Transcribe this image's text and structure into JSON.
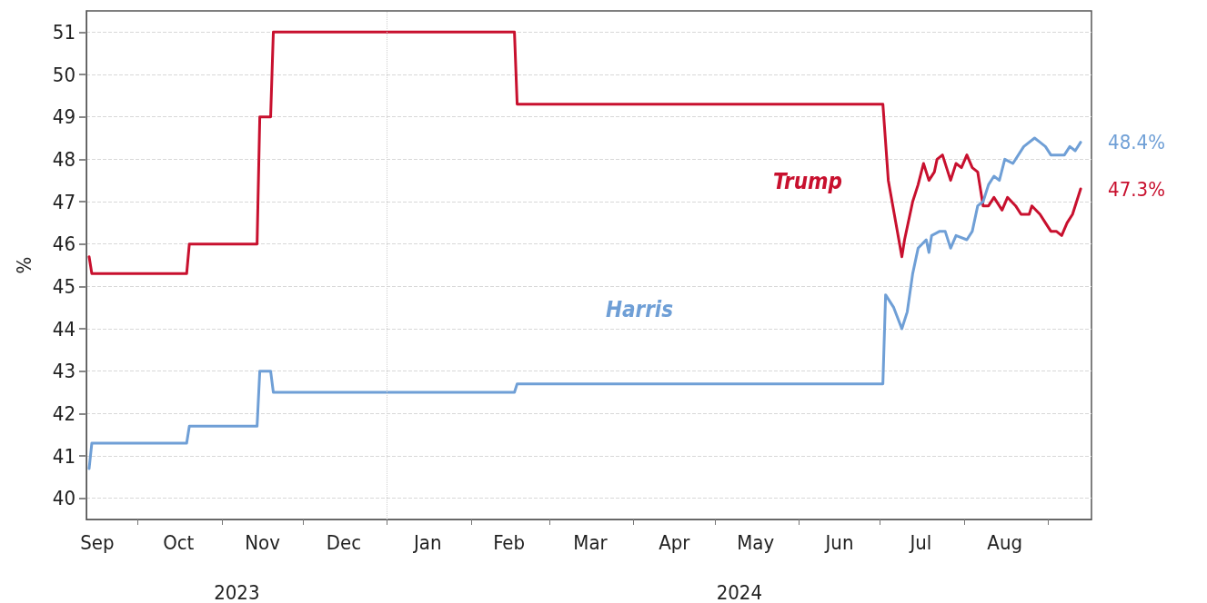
{
  "chart_data": {
    "type": "line",
    "ylabel": "%",
    "xlim": [
      "2023-09-12",
      "2024-09-17"
    ],
    "xticks": [
      {
        "value": "2023-10-01",
        "label": null
      },
      {
        "value": "2023-11-01",
        "label": null
      },
      {
        "value": "2023-12-01",
        "label": null
      },
      {
        "value": "2024-01-01",
        "label": null
      },
      {
        "value": "2024-02-01",
        "label": null
      },
      {
        "value": "2024-03-01",
        "label": null
      },
      {
        "value": "2024-04-01",
        "label": null
      },
      {
        "value": "2024-05-01",
        "label": null
      },
      {
        "value": "2024-06-01",
        "label": null
      },
      {
        "value": "2024-07-01",
        "label": null
      },
      {
        "value": "2024-08-01",
        "label": null
      },
      {
        "value": "2024-09-01",
        "label": null
      },
      {
        "value": "2023-09-16",
        "label": "Sep"
      },
      {
        "value": "2023-10-16",
        "label": "Oct"
      },
      {
        "value": "2023-11-16",
        "label": "Nov"
      },
      {
        "value": "2023-12-16",
        "label": "Dec"
      },
      {
        "value": "2024-01-16",
        "label": "Jan"
      },
      {
        "value": "2024-02-15",
        "label": "Feb"
      },
      {
        "value": "2024-03-16",
        "label": "Mar"
      },
      {
        "value": "2024-04-16",
        "label": "Apr"
      },
      {
        "value": "2024-05-16",
        "label": "May"
      },
      {
        "value": "2024-06-16",
        "label": "Jun"
      },
      {
        "value": "2024-07-16",
        "label": "Jul"
      },
      {
        "value": "2024-08-16",
        "label": "Aug"
      }
    ],
    "ylim": [
      39.5,
      51.5
    ],
    "yticks": [
      40,
      41,
      42,
      43,
      44,
      45,
      46,
      47,
      48,
      49,
      50,
      51
    ],
    "grid": "y",
    "ref_lines": [
      {
        "axis": "x",
        "value": "2024-01-01",
        "color": "#d0d0d0",
        "line_style": "dotted"
      }
    ],
    "annotations": [
      "2023",
      "2024"
    ],
    "series": [
      {
        "name": "Trump",
        "color": "#c8102e",
        "x": [
          "2023-09-13",
          "2023-09-14",
          "2023-10-19",
          "2023-10-20",
          "2023-11-14",
          "2023-11-15",
          "2023-11-19",
          "2023-11-20",
          "2024-02-17",
          "2024-02-18",
          "2024-07-02",
          "2024-07-04",
          "2024-07-09",
          "2024-07-10",
          "2024-07-13",
          "2024-07-15",
          "2024-07-17",
          "2024-07-19",
          "2024-07-21",
          "2024-07-22",
          "2024-07-24",
          "2024-07-27",
          "2024-07-29",
          "2024-07-31",
          "2024-08-02",
          "2024-08-04",
          "2024-08-06",
          "2024-08-08",
          "2024-08-10",
          "2024-08-12",
          "2024-08-15",
          "2024-08-17",
          "2024-08-20",
          "2024-08-22",
          "2024-08-25",
          "2024-08-26",
          "2024-08-29",
          "2024-08-31",
          "2024-09-02",
          "2024-09-04",
          "2024-09-06",
          "2024-09-08",
          "2024-09-10",
          "2024-09-13"
        ],
        "values": [
          45.7,
          45.3,
          45.3,
          46.0,
          46.0,
          49.0,
          49.0,
          51.0,
          51.0,
          49.3,
          49.3,
          47.5,
          45.7,
          46.1,
          47.0,
          47.4,
          47.9,
          47.5,
          47.7,
          48.0,
          48.1,
          47.5,
          47.9,
          47.8,
          48.1,
          47.8,
          47.7,
          46.9,
          46.9,
          47.1,
          46.8,
          47.1,
          46.9,
          46.7,
          46.7,
          46.9,
          46.7,
          46.5,
          46.3,
          46.3,
          46.2,
          46.5,
          46.7,
          47.3
        ],
        "value_labels": [
          null,
          null,
          null,
          null,
          null,
          null,
          null,
          null,
          null,
          null,
          null,
          null,
          null,
          null,
          null,
          null,
          null,
          null,
          null,
          null,
          null,
          null,
          null,
          null,
          null,
          null,
          null,
          null,
          null,
          null,
          null,
          null,
          null,
          null,
          null,
          null,
          null,
          null,
          null,
          null,
          null,
          null,
          null,
          "47.3%"
        ]
      },
      {
        "name": "Harris",
        "color": "#6f9fd6",
        "x": [
          "2023-09-13",
          "2023-09-14",
          "2023-10-19",
          "2023-10-20",
          "2023-11-14",
          "2023-11-15",
          "2023-11-19",
          "2023-11-20",
          "2024-02-17",
          "2024-02-18",
          "2024-07-02",
          "2024-07-03",
          "2024-07-06",
          "2024-07-09",
          "2024-07-11",
          "2024-07-13",
          "2024-07-15",
          "2024-07-18",
          "2024-07-19",
          "2024-07-20",
          "2024-07-23",
          "2024-07-25",
          "2024-07-27",
          "2024-07-29",
          "2024-08-02",
          "2024-08-04",
          "2024-08-06",
          "2024-08-08",
          "2024-08-10",
          "2024-08-12",
          "2024-08-14",
          "2024-08-16",
          "2024-08-19",
          "2024-08-23",
          "2024-08-27",
          "2024-08-29",
          "2024-08-31",
          "2024-09-02",
          "2024-09-04",
          "2024-09-07",
          "2024-09-09",
          "2024-09-11",
          "2024-09-13"
        ],
        "values": [
          40.7,
          41.3,
          41.3,
          41.7,
          41.7,
          43.0,
          43.0,
          42.5,
          42.5,
          42.7,
          42.7,
          44.8,
          44.5,
          44.0,
          44.4,
          45.3,
          45.9,
          46.1,
          45.8,
          46.2,
          46.3,
          46.3,
          45.9,
          46.2,
          46.1,
          46.3,
          46.9,
          47.0,
          47.4,
          47.6,
          47.5,
          48.0,
          47.9,
          48.3,
          48.5,
          48.4,
          48.3,
          48.1,
          48.1,
          48.1,
          48.3,
          48.2,
          48.4
        ],
        "value_labels": [
          null,
          null,
          null,
          null,
          null,
          null,
          null,
          null,
          null,
          null,
          null,
          null,
          null,
          null,
          null,
          null,
          null,
          null,
          null,
          null,
          null,
          null,
          null,
          null,
          null,
          null,
          null,
          null,
          null,
          null,
          null,
          null,
          null,
          null,
          null,
          null,
          null,
          null,
          null,
          null,
          null,
          null,
          "48.4%"
        ]
      }
    ]
  }
}
